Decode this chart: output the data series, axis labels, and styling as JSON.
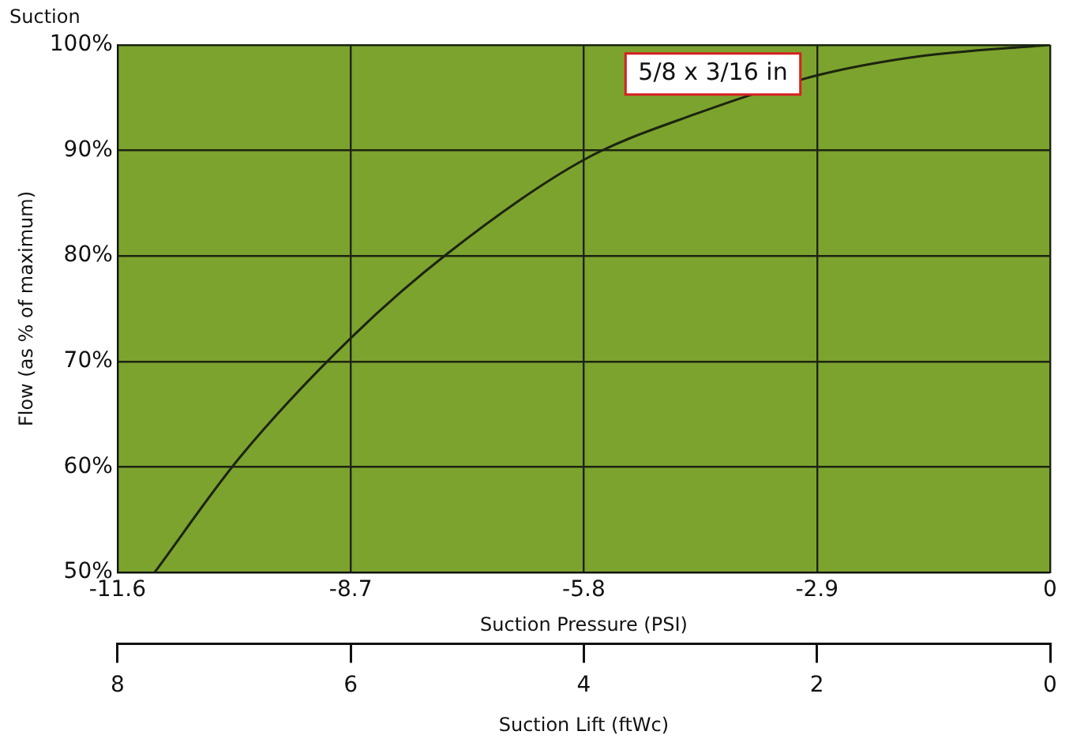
{
  "chart_data": {
    "type": "line",
    "title": "Suction",
    "xlabel": "Suction Pressure (PSI)",
    "ylabel": "Flow (as % of maximum)",
    "x2label": "Suction Lift (ftWc)",
    "x": [
      -11.14,
      -10.08,
      -8.7,
      -7.5,
      -5.8,
      -4.39,
      -2.9,
      -1.64,
      0
    ],
    "series": [
      {
        "name": "5/8 x 3/16 in",
        "color": "#1c2410",
        "values": [
          50,
          60.9,
          72.2,
          80.2,
          89.1,
          93.5,
          97.1,
          98.9,
          100
        ]
      }
    ],
    "xlim": [
      -11.6,
      0
    ],
    "xticks": [
      -11.6,
      -8.7,
      -5.8,
      -2.9,
      0
    ],
    "ylim": [
      50,
      100
    ],
    "yticks": [
      {
        "value": 50,
        "label": "50%"
      },
      {
        "value": 60,
        "label": "60%"
      },
      {
        "value": 70,
        "label": "70%"
      },
      {
        "value": 80,
        "label": "80%"
      },
      {
        "value": 90,
        "label": "90%"
      },
      {
        "value": 100,
        "label": "100%"
      }
    ],
    "x2lim": [
      8,
      0
    ],
    "x2ticks": [
      8,
      6,
      4,
      2,
      0
    ],
    "grid": true,
    "marker": "none",
    "line_style": "solid",
    "legend": false
  }
}
